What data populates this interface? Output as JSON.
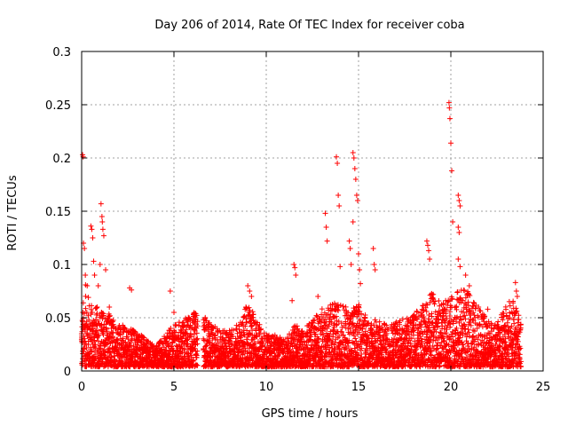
{
  "chart_data": {
    "type": "scatter",
    "title": "Day 206 of 2014, Rate Of TEC Index for receiver coba",
    "xlabel": "GPS time / hours",
    "ylabel": "ROTI / TECUs",
    "xlim": [
      0,
      25
    ],
    "ylim": [
      0,
      0.3
    ],
    "x_ticks": [
      "0",
      "5",
      "10",
      "15",
      "20",
      "25"
    ],
    "y_ticks": [
      "0",
      "0.05",
      "0.1",
      "0.15",
      "0.2",
      "0.25",
      "0.3"
    ],
    "grid": true,
    "marker": "+",
    "color": "#ff0000",
    "series": [
      {
        "name": "coba",
        "points": [
          [
            0.05,
            0.203
          ],
          [
            0.08,
            0.201
          ],
          [
            0.1,
            0.12
          ],
          [
            0.15,
            0.115
          ],
          [
            0.2,
            0.09
          ],
          [
            0.3,
            0.08
          ],
          [
            0.5,
            0.136
          ],
          [
            0.55,
            0.133
          ],
          [
            0.6,
            0.125
          ],
          [
            0.65,
            0.103
          ],
          [
            0.7,
            0.09
          ],
          [
            0.9,
            0.08
          ],
          [
            1.0,
            0.1
          ],
          [
            1.05,
            0.157
          ],
          [
            1.1,
            0.145
          ],
          [
            1.12,
            0.14
          ],
          [
            1.15,
            0.133
          ],
          [
            1.2,
            0.127
          ],
          [
            1.3,
            0.095
          ],
          [
            1.5,
            0.06
          ],
          [
            2.6,
            0.078
          ],
          [
            2.7,
            0.076
          ],
          [
            4.8,
            0.075
          ],
          [
            5.0,
            0.055
          ],
          [
            9.0,
            0.08
          ],
          [
            9.1,
            0.075
          ],
          [
            9.2,
            0.07
          ],
          [
            11.5,
            0.1
          ],
          [
            11.55,
            0.097
          ],
          [
            11.6,
            0.09
          ],
          [
            11.4,
            0.066
          ],
          [
            12.8,
            0.07
          ],
          [
            13.2,
            0.148
          ],
          [
            13.25,
            0.135
          ],
          [
            13.3,
            0.122
          ],
          [
            13.8,
            0.201
          ],
          [
            13.85,
            0.195
          ],
          [
            13.9,
            0.165
          ],
          [
            13.95,
            0.155
          ],
          [
            14.0,
            0.098
          ],
          [
            14.5,
            0.122
          ],
          [
            14.55,
            0.115
          ],
          [
            14.6,
            0.1
          ],
          [
            14.7,
            0.205
          ],
          [
            14.75,
            0.2
          ],
          [
            14.8,
            0.19
          ],
          [
            14.85,
            0.18
          ],
          [
            14.9,
            0.165
          ],
          [
            14.95,
            0.16
          ],
          [
            14.7,
            0.14
          ],
          [
            15.0,
            0.11
          ],
          [
            15.05,
            0.095
          ],
          [
            15.1,
            0.082
          ],
          [
            15.8,
            0.115
          ],
          [
            15.85,
            0.1
          ],
          [
            15.9,
            0.095
          ],
          [
            18.7,
            0.122
          ],
          [
            18.75,
            0.118
          ],
          [
            18.8,
            0.113
          ],
          [
            18.85,
            0.105
          ],
          [
            19.9,
            0.252
          ],
          [
            19.92,
            0.247
          ],
          [
            19.95,
            0.237
          ],
          [
            20.0,
            0.214
          ],
          [
            20.05,
            0.188
          ],
          [
            20.1,
            0.14
          ],
          [
            20.4,
            0.165
          ],
          [
            20.45,
            0.16
          ],
          [
            20.5,
            0.155
          ],
          [
            20.4,
            0.135
          ],
          [
            20.45,
            0.13
          ],
          [
            20.4,
            0.105
          ],
          [
            20.5,
            0.098
          ],
          [
            20.8,
            0.09
          ],
          [
            21.0,
            0.08
          ],
          [
            23.5,
            0.083
          ],
          [
            23.55,
            0.075
          ],
          [
            23.6,
            0.07
          ],
          [
            21.5,
            0.06
          ],
          [
            22.0,
            0.058
          ]
        ],
        "envelope": [
          [
            0.0,
            0.05
          ],
          [
            0.2,
            0.078
          ],
          [
            0.5,
            0.06
          ],
          [
            1.0,
            0.055
          ],
          [
            1.5,
            0.05
          ],
          [
            2.0,
            0.04
          ],
          [
            2.5,
            0.038
          ],
          [
            3.0,
            0.035
          ],
          [
            3.5,
            0.025
          ],
          [
            4.0,
            0.02
          ],
          [
            4.5,
            0.03
          ],
          [
            5.0,
            0.04
          ],
          [
            5.5,
            0.045
          ],
          [
            6.0,
            0.05
          ],
          [
            6.4,
            0.055
          ],
          [
            6.6,
            0.05
          ],
          [
            7.0,
            0.04
          ],
          [
            7.5,
            0.035
          ],
          [
            8.0,
            0.035
          ],
          [
            8.5,
            0.04
          ],
          [
            9.0,
            0.06
          ],
          [
            9.5,
            0.045
          ],
          [
            10.0,
            0.03
          ],
          [
            10.5,
            0.03
          ],
          [
            11.0,
            0.025
          ],
          [
            11.5,
            0.04
          ],
          [
            12.0,
            0.035
          ],
          [
            12.5,
            0.045
          ],
          [
            13.0,
            0.055
          ],
          [
            13.5,
            0.06
          ],
          [
            14.0,
            0.06
          ],
          [
            14.5,
            0.055
          ],
          [
            15.0,
            0.06
          ],
          [
            15.5,
            0.045
          ],
          [
            16.0,
            0.045
          ],
          [
            16.5,
            0.04
          ],
          [
            17.0,
            0.045
          ],
          [
            17.5,
            0.045
          ],
          [
            18.0,
            0.05
          ],
          [
            18.5,
            0.06
          ],
          [
            19.0,
            0.07
          ],
          [
            19.5,
            0.06
          ],
          [
            20.0,
            0.065
          ],
          [
            20.5,
            0.075
          ],
          [
            21.0,
            0.07
          ],
          [
            21.5,
            0.055
          ],
          [
            22.0,
            0.045
          ],
          [
            22.5,
            0.04
          ],
          [
            23.0,
            0.06
          ],
          [
            23.5,
            0.065
          ],
          [
            23.8,
            0.04
          ]
        ]
      }
    ]
  }
}
